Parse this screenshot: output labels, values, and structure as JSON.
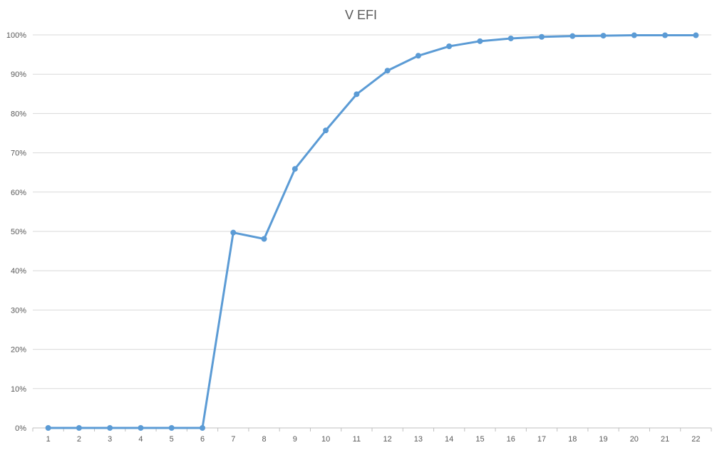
{
  "chart_data": {
    "type": "line",
    "title": "V EFI",
    "xlabel": "",
    "ylabel": "",
    "x": [
      "1",
      "2",
      "3",
      "4",
      "5",
      "6",
      "7",
      "8",
      "9",
      "10",
      "11",
      "12",
      "13",
      "14",
      "15",
      "16",
      "17",
      "18",
      "19",
      "20",
      "21",
      "22"
    ],
    "series": [
      {
        "values": [
          0,
          0,
          0,
          0,
          0,
          0,
          0.497,
          0.481,
          0.659,
          0.757,
          0.849,
          0.909,
          0.947,
          0.971,
          0.984,
          0.991,
          0.995,
          0.997,
          0.998,
          0.999,
          0.999,
          0.999
        ],
        "color": "#5b9bd5"
      }
    ],
    "y_ticks": [
      "0%",
      "10%",
      "20%",
      "30%",
      "40%",
      "50%",
      "60%",
      "70%",
      "80%",
      "90%",
      "100%"
    ],
    "ylim": [
      0,
      1
    ],
    "grid": true,
    "legend": "none",
    "markers": true
  }
}
